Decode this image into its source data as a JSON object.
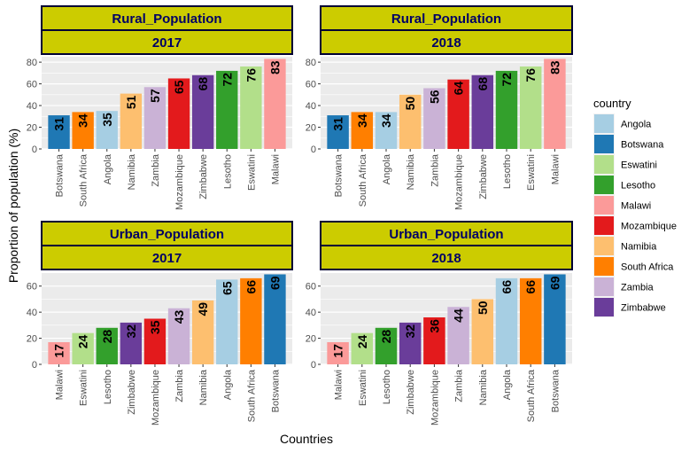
{
  "colors": {
    "Angola": "#a6cee3",
    "Botswana": "#1f78b4",
    "Eswatini": "#b2df8a",
    "Lesotho": "#33a02c",
    "Malawi": "#fb9a99",
    "Mozambique": "#e31a1c",
    "Namibia": "#fdbf6f",
    "South Africa": "#ff7f00",
    "Zambia": "#cab2d6",
    "Zimbabwe": "#6a3d9a"
  },
  "chart_data": {
    "type": "bar",
    "ylabel": "Proportion of population (%)",
    "xlabel": "Countries",
    "legend": {
      "title": "country",
      "placement": "right",
      "items": [
        "Angola",
        "Botswana",
        "Eswatini",
        "Lesotho",
        "Malawi",
        "Mozambique",
        "Namibia",
        "South Africa",
        "Zambia",
        "Zimbabwe"
      ]
    },
    "panels": [
      {
        "strip_top": "Rural_Population",
        "strip_bottom": "2017",
        "ylim": [
          0,
          85
        ],
        "yticks": [
          0,
          20,
          40,
          60,
          80
        ],
        "categories": [
          "Botswana",
          "South Africa",
          "Angola",
          "Namibia",
          "Zambia",
          "Mozambique",
          "Zimbabwe",
          "Lesotho",
          "Eswatini",
          "Malawi"
        ],
        "values": [
          31,
          34,
          35,
          51,
          57,
          65,
          68,
          72,
          76,
          83
        ],
        "labels": [
          "31",
          "34",
          "35",
          "51",
          "57",
          "65",
          "68",
          "72",
          "76",
          "83"
        ]
      },
      {
        "strip_top": "Rural_Population",
        "strip_bottom": "2018",
        "ylim": [
          0,
          85
        ],
        "yticks": [
          0,
          20,
          40,
          60,
          80
        ],
        "categories": [
          "Botswana",
          "South Africa",
          "Angola",
          "Namibia",
          "Zambia",
          "Mozambique",
          "Zimbabwe",
          "Lesotho",
          "Eswatini",
          "Malawi"
        ],
        "values": [
          31,
          34,
          34,
          50,
          56,
          64,
          68,
          72,
          76,
          83
        ],
        "labels": [
          "31",
          "34",
          "34",
          "50",
          "56",
          "64",
          "68",
          "72",
          "76",
          "83"
        ]
      },
      {
        "strip_top": "Urban_Population",
        "strip_bottom": "2017",
        "ylim": [
          0,
          70
        ],
        "yticks": [
          0,
          20,
          40,
          60
        ],
        "categories": [
          "Malawi",
          "Eswatini",
          "Lesotho",
          "Zimbabwe",
          "Mozambique",
          "Zambia",
          "Namibia",
          "Angola",
          "South Africa",
          "Botswana"
        ],
        "values": [
          17,
          24,
          28,
          32,
          35,
          43,
          49,
          65,
          66,
          69
        ],
        "labels": [
          "17",
          "24",
          "28",
          "32",
          "35",
          "43",
          "49",
          "65",
          "66",
          "69"
        ]
      },
      {
        "strip_top": "Urban_Population",
        "strip_bottom": "2018",
        "ylim": [
          0,
          70
        ],
        "yticks": [
          0,
          20,
          40,
          60
        ],
        "categories": [
          "Malawi",
          "Eswatini",
          "Lesotho",
          "Zimbabwe",
          "Mozambique",
          "Zambia",
          "Namibia",
          "Angola",
          "South Africa",
          "Botswana"
        ],
        "values": [
          17,
          24,
          28,
          32,
          36,
          44,
          50,
          66,
          66,
          69
        ],
        "labels": [
          "17",
          "24",
          "28",
          "32",
          "36",
          "44",
          "50",
          "66",
          "66",
          "69"
        ]
      }
    ]
  }
}
